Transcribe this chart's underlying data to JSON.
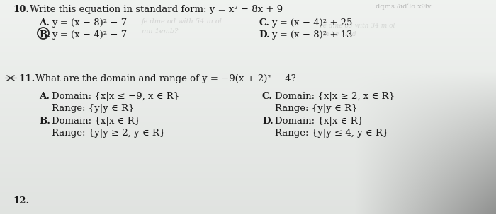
{
  "bg_color_top": "#e8e8e8",
  "bg_color": "#c8ccc8",
  "text_color": "#1a1a1a",
  "q10_number": "10.",
  "q10_prompt": "Write this equation in standard form: ",
  "q10_equation": "y = x² − 8x + 9",
  "q10_A_label": "A.",
  "q10_A_text": "y = (x − 8)² − 7",
  "q10_B_label": "B.",
  "q10_B_text": "y = (x − 4)² − 7",
  "q10_C_label": "C.",
  "q10_C_text": "y = (x − 4)² + 25",
  "q10_D_label": "D.",
  "q10_D_text": "y = (x − 8)² + 13",
  "q11_number": "11.",
  "q11_prompt": "What are the domain and range of ",
  "q11_equation": "y = −9(x + 2)² + 4?",
  "q11_A_label": "A.",
  "q11_A_domain": "Domain: {x|x ≤ −9, x ∈ R}",
  "q11_A_range": "Range: {y|y ∈ R}",
  "q11_B_label": "B.",
  "q11_B_domain": "Domain: {x|x ∈ R}",
  "q11_B_range": "Range: {y|y ≥ 2, y ∈ R}",
  "q11_C_label": "C.",
  "q11_C_domain": "Domain: {x|x ≥ 2, x ∈ R}",
  "q11_C_range": "Range: {y|y ∈ R}",
  "q11_D_label": "D.",
  "q11_D_domain": "Domain: {x|x ∈ R}",
  "q11_D_range": "Range: {y|y ≤ 4, y ∈ R}",
  "watermark": "dqms ∂idʹlo x∂lv",
  "faded1": "fe dme od with 54 m ol",
  "faded2": "mn 1emb?"
}
